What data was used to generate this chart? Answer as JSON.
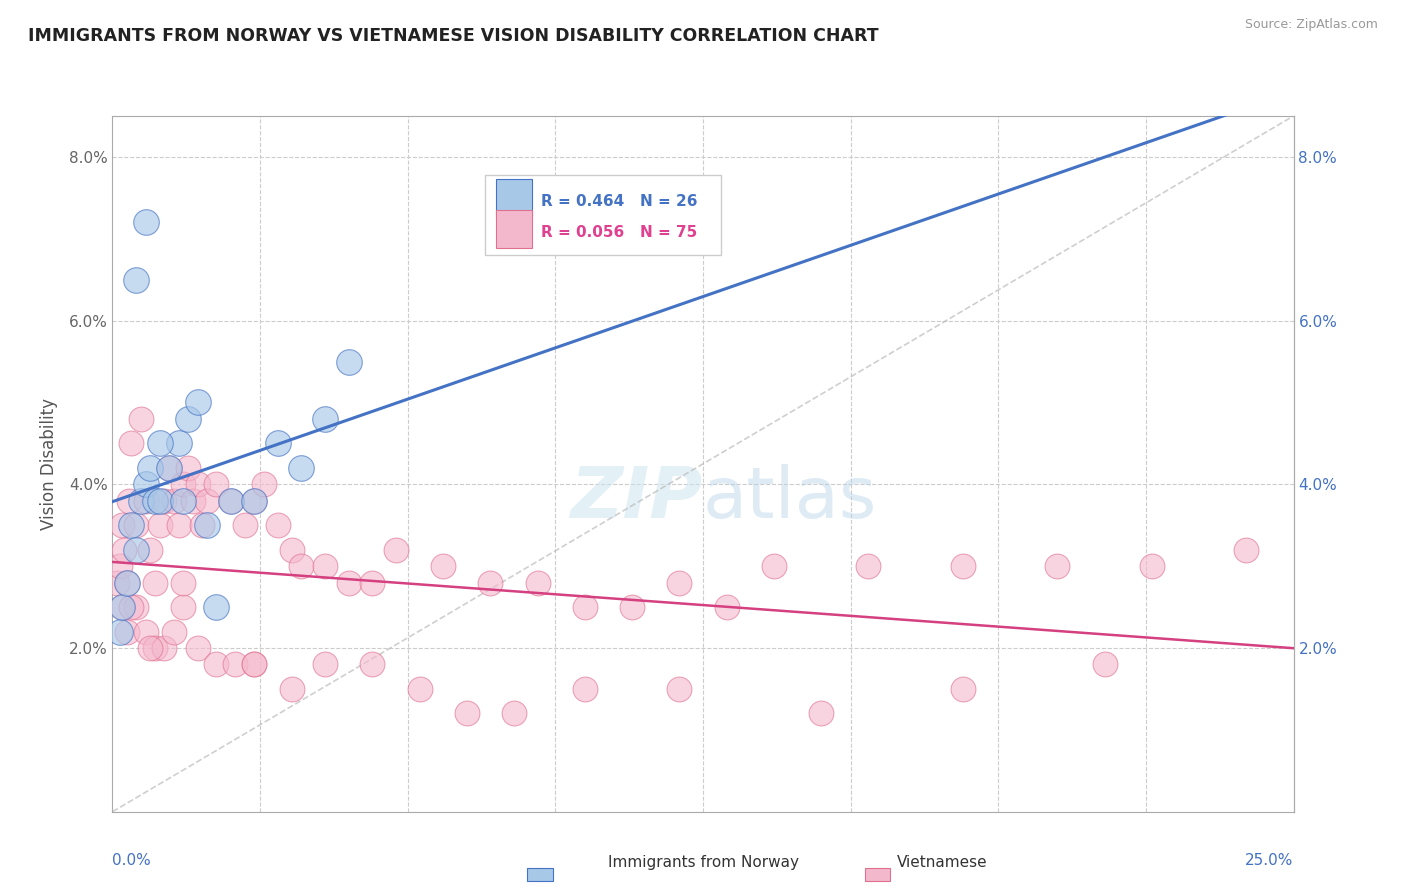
{
  "title": "IMMIGRANTS FROM NORWAY VS VIETNAMESE VISION DISABILITY CORRELATION CHART",
  "source": "Source: ZipAtlas.com",
  "ylabel": "Vision Disability",
  "xlim": [
    0.0,
    25.0
  ],
  "ylim": [
    0.0,
    8.5
  ],
  "norway_R": 0.464,
  "norway_N": 26,
  "vietnamese_R": 0.056,
  "vietnamese_N": 75,
  "norway_color": "#a8c8e8",
  "norwegian_edge": "#4472c4",
  "vietnamese_color": "#f4b8cc",
  "vietnamese_edge": "#e07090",
  "norway_line_color": "#4472c4",
  "vietnamese_line_color": "#d44080",
  "norway_scatter_x": [
    0.15,
    0.2,
    0.3,
    0.4,
    0.5,
    0.6,
    0.7,
    0.8,
    0.9,
    1.0,
    1.2,
    1.4,
    1.6,
    1.8,
    2.0,
    2.5,
    3.0,
    3.5,
    4.0,
    4.5,
    5.0,
    0.5,
    0.7,
    1.0,
    1.5,
    2.2
  ],
  "norway_scatter_y": [
    2.2,
    2.5,
    2.8,
    3.5,
    3.2,
    3.8,
    4.0,
    4.2,
    3.8,
    3.8,
    4.2,
    4.5,
    4.8,
    5.0,
    3.5,
    3.8,
    3.8,
    4.5,
    4.2,
    4.8,
    5.5,
    6.5,
    7.2,
    4.5,
    3.8,
    2.5
  ],
  "vietnamese_scatter_x": [
    0.1,
    0.15,
    0.2,
    0.25,
    0.3,
    0.35,
    0.4,
    0.5,
    0.6,
    0.7,
    0.8,
    0.9,
    1.0,
    1.1,
    1.2,
    1.3,
    1.4,
    1.5,
    1.6,
    1.7,
    1.8,
    1.9,
    2.0,
    2.2,
    2.5,
    2.8,
    3.0,
    3.2,
    3.5,
    3.8,
    4.0,
    4.5,
    5.0,
    5.5,
    6.0,
    7.0,
    8.0,
    9.0,
    10.0,
    11.0,
    12.0,
    13.0,
    14.0,
    16.0,
    18.0,
    20.0,
    22.0,
    24.0,
    0.2,
    0.3,
    0.5,
    0.7,
    0.9,
    1.1,
    1.3,
    1.5,
    1.8,
    2.2,
    2.6,
    3.0,
    3.8,
    4.5,
    5.5,
    6.5,
    7.5,
    8.5,
    10.0,
    12.0,
    15.0,
    18.0,
    21.0,
    0.4,
    0.8,
    1.5,
    3.0
  ],
  "vietnamese_scatter_y": [
    2.8,
    3.0,
    3.5,
    3.2,
    2.8,
    3.8,
    4.5,
    3.5,
    4.8,
    3.8,
    3.2,
    2.8,
    3.5,
    3.8,
    4.2,
    3.8,
    3.5,
    4.0,
    4.2,
    3.8,
    4.0,
    3.5,
    3.8,
    4.0,
    3.8,
    3.5,
    3.8,
    4.0,
    3.5,
    3.2,
    3.0,
    3.0,
    2.8,
    2.8,
    3.2,
    3.0,
    2.8,
    2.8,
    2.5,
    2.5,
    2.8,
    2.5,
    3.0,
    3.0,
    3.0,
    3.0,
    3.0,
    3.2,
    2.5,
    2.2,
    2.5,
    2.2,
    2.0,
    2.0,
    2.2,
    2.5,
    2.0,
    1.8,
    1.8,
    1.8,
    1.5,
    1.8,
    1.8,
    1.5,
    1.2,
    1.2,
    1.5,
    1.5,
    1.2,
    1.5,
    1.8,
    2.5,
    2.0,
    2.8,
    1.8
  ]
}
